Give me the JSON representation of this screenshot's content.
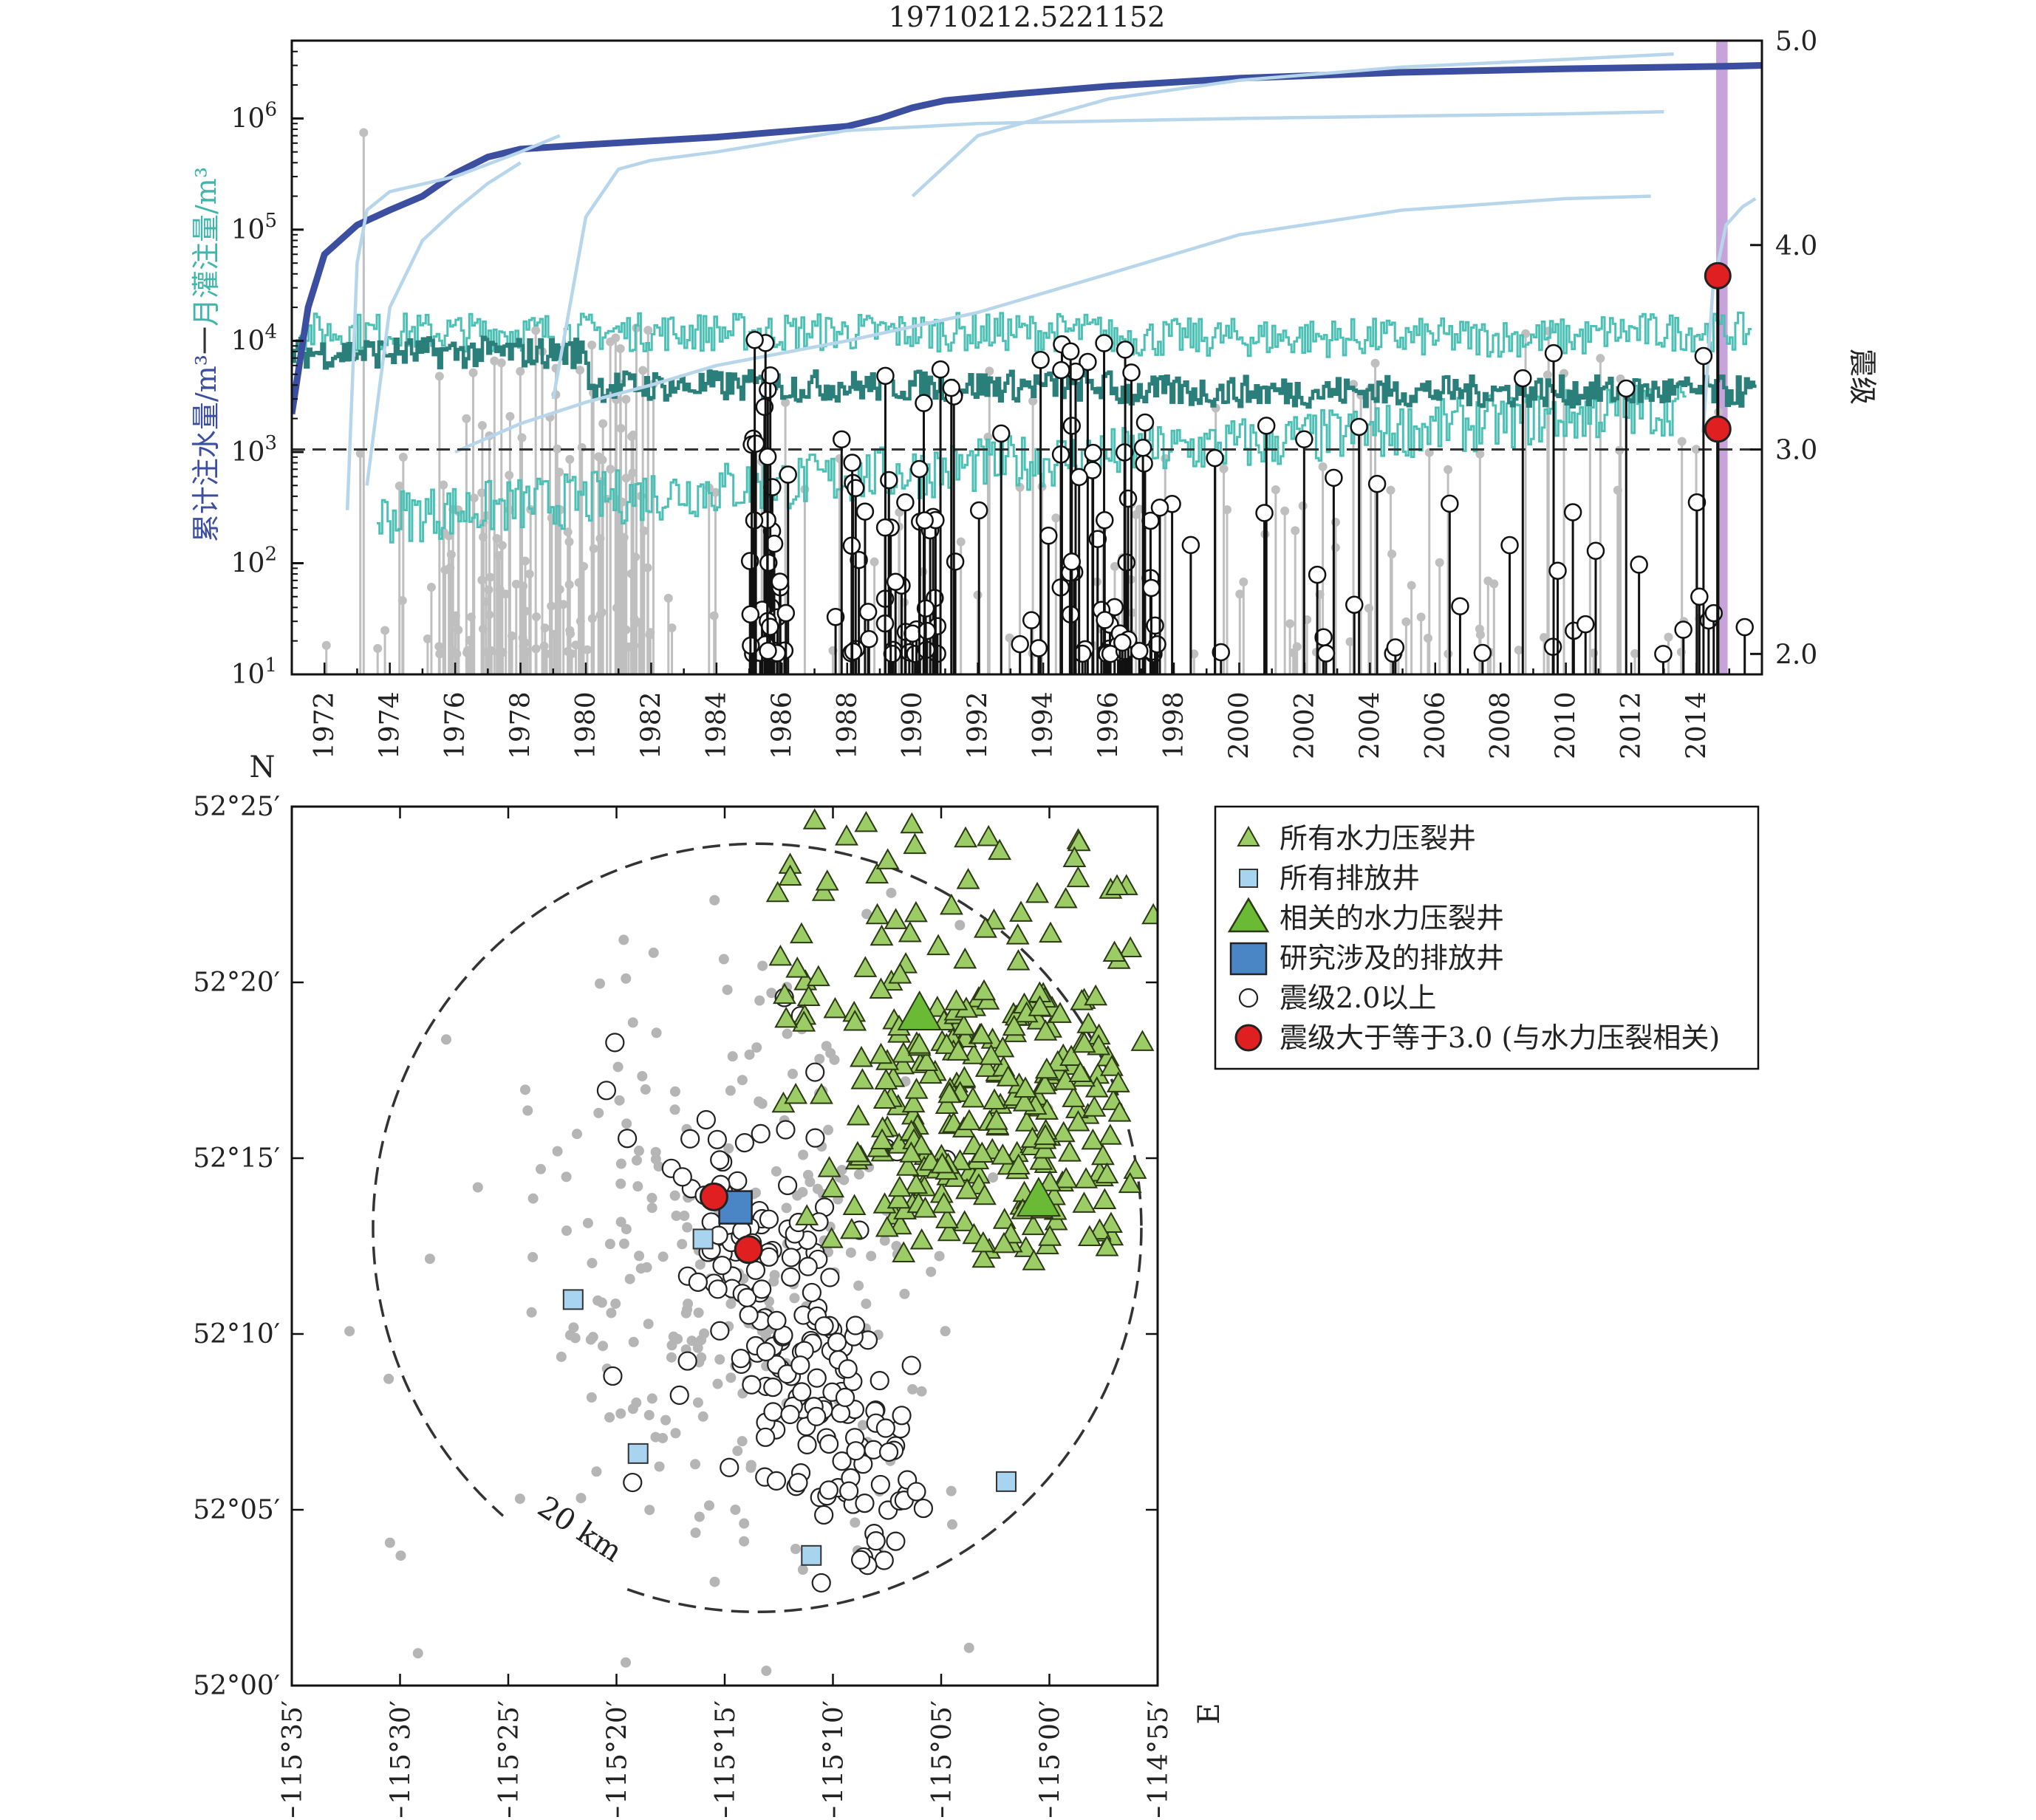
{
  "chart_data": [
    {
      "type": "line",
      "title": "19710212.5221152",
      "xlabel": "",
      "ylabel_left_part1": "累计注水量/m³",
      "ylabel_left_sep": "一",
      "ylabel_left_part2": "月灌注量/m³",
      "ylabel_right": "震级",
      "xlim": [
        1971,
        2016
      ],
      "ylim_log10": [
        1,
        6.7
      ],
      "y2lim": [
        1.9,
        5.0
      ],
      "y_scale": "log",
      "y_ticks": [
        {
          "base": "10",
          "exp": "1"
        },
        {
          "base": "10",
          "exp": "2"
        },
        {
          "base": "10",
          "exp": "3"
        },
        {
          "base": "10",
          "exp": "4"
        },
        {
          "base": "10",
          "exp": "5"
        },
        {
          "base": "10",
          "exp": "6"
        }
      ],
      "y2_ticks": [
        "2.0",
        "3.0",
        "4.0",
        "5.0"
      ],
      "x_ticks": [
        "1972",
        "1974",
        "1976",
        "1978",
        "1980",
        "1982",
        "1984",
        "1986",
        "1988",
        "1990",
        "1992",
        "1994",
        "1996",
        "1998",
        "2000",
        "2002",
        "2004",
        "2006",
        "2008",
        "2010",
        "2012",
        "2014"
      ],
      "threshold_magnitude": 3.0,
      "highlight_year": [
        2014.6,
        2014.95
      ],
      "colors": {
        "cumulative_main": "#3c4ea0",
        "cumulative_other": "#b7d6ec",
        "monthly_light": "#4cc0b4",
        "monthly_dark": "#2a7f7a",
        "event_gray": "#bfbfbf",
        "event_black": "#111111",
        "event_red": "#e02020",
        "highlight": "#c7a3dc"
      },
      "series": [
        {
          "role": "cumulative-study",
          "x": [
            1971,
            1971.5,
            1972,
            1973,
            1974,
            1975,
            1976,
            1977,
            1978,
            1980,
            1984,
            1988,
            1989,
            1990,
            1991,
            1993,
            1996,
            2000,
            2005,
            2010,
            2015,
            2016
          ],
          "y": [
            2200,
            20000,
            60000,
            110000,
            150000,
            200000,
            320000,
            450000,
            530000,
            580000,
            680000,
            850000,
            1000000,
            1250000,
            1450000,
            1650000,
            1950000,
            2300000,
            2600000,
            2800000,
            2950000,
            3000000
          ]
        },
        {
          "role": "cumulative-other",
          "x": [
            1972.7,
            1973,
            1973.3,
            1974,
            1976,
            1978,
            1979.2
          ],
          "y": [
            300,
            50000,
            150000,
            220000,
            300000,
            500000,
            700000
          ]
        },
        {
          "role": "cumulative-other",
          "x": [
            1973.3,
            1974,
            1975,
            1976,
            1977,
            1978
          ],
          "y": [
            500,
            20000,
            80000,
            150000,
            260000,
            400000
          ]
        },
        {
          "role": "cumulative-other",
          "x": [
            1979,
            1980,
            1981,
            1982,
            1984,
            1988,
            1992,
            1996,
            2000,
            2005,
            2010,
            2013
          ],
          "y": [
            3000,
            130000,
            350000,
            420000,
            500000,
            780000,
            900000,
            950000,
            1000000,
            1050000,
            1100000,
            1150000
          ]
        },
        {
          "role": "cumulative-other",
          "x": [
            1976,
            1978,
            1980,
            1982,
            1984,
            1988,
            1992,
            1996,
            2000,
            2005,
            2010,
            2012.6
          ],
          "y": [
            1000,
            1800,
            2800,
            4000,
            6000,
            10000,
            18000,
            40000,
            90000,
            150000,
            190000,
            200000
          ]
        },
        {
          "role": "cumulative-other",
          "x": [
            1990,
            1992,
            1996,
            2000,
            2005,
            2010,
            2013.3
          ],
          "y": [
            200000,
            700000,
            1500000,
            2200000,
            2900000,
            3400000,
            3800000
          ]
        },
        {
          "role": "cumulative-other",
          "x": [
            2014.2,
            2014.5,
            2014.9,
            2015.4,
            2015.8
          ],
          "y": [
            1500,
            30000,
            110000,
            160000,
            190000
          ]
        }
      ],
      "events_gray_count": 260,
      "events_black_count": 180,
      "events_red": [
        {
          "x": 2014.65,
          "magnitude": 3.85
        },
        {
          "x": 2014.65,
          "magnitude": 3.1
        }
      ]
    },
    {
      "type": "scatter",
      "title": "",
      "xlabel": "E",
      "ylabel": "N",
      "xlim": [
        -115.5833,
        -114.9167
      ],
      "ylim": [
        52.0,
        52.4167
      ],
      "x_ticks": [
        "−115°35′",
        "−115°30′",
        "−115°25′",
        "−115°20′",
        "−115°15′",
        "−115°10′",
        "−115°05′",
        "−115°00′",
        "−114°55′"
      ],
      "y_ticks": [
        "52°00′",
        "52°05′",
        "52°10′",
        "52°15′",
        "52°20′",
        "52°25′"
      ],
      "circle_label": "20 km",
      "circle_center": [
        -115.225,
        52.217
      ],
      "circle_radius_km": 20,
      "legend_placement": "outside-right-top",
      "legend": [
        {
          "key": "frac-wells",
          "label": "所有水力压裂井",
          "color": "#9ccc65"
        },
        {
          "key": "disposal-wells",
          "label": "所有排放井",
          "color": "#a8d4f0"
        },
        {
          "key": "related-frac-wells",
          "label": "相关的水力压裂井",
          "color": "#6aba35"
        },
        {
          "key": "study-disposal-wells",
          "label": "研究涉及的排放井",
          "color": "#4a86c6"
        },
        {
          "key": "quakes-m2",
          "label": "震级2.0以上",
          "color": "#ffffff"
        },
        {
          "key": "quakes-m3",
          "label": "震级大于等于3.0 (与水力压裂相关)",
          "color": "#e02020"
        }
      ],
      "disposal_wells": [
        [
          -115.3667,
          52.183
        ],
        [
          -115.2667,
          52.2117
        ],
        [
          -115.3167,
          52.11
        ],
        [
          -115.1833,
          52.0617
        ],
        [
          -115.0333,
          52.0967
        ]
      ],
      "study_disposal_well": [
        -115.2417,
        52.2267
      ],
      "related_frac_wells": [
        [
          -115.1,
          52.3183
        ],
        [
          -115.0083,
          52.23
        ]
      ],
      "quakes_m3": [
        [
          -115.2583,
          52.2317
        ],
        [
          -115.2317,
          52.2067
        ]
      ],
      "frac_wells_count": 320,
      "quakes_m2_count": 200,
      "background_events_count": 280
    }
  ]
}
